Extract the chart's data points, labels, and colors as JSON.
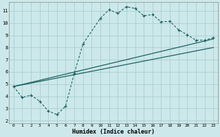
{
  "xlabel": "Humidex (Indice chaleur)",
  "bg_color": "#cce8ea",
  "grid_color": "#aacdd0",
  "line_color": "#1a6060",
  "xlim": [
    -0.5,
    23.5
  ],
  "ylim": [
    1.8,
    11.7
  ],
  "xticks": [
    0,
    1,
    2,
    3,
    4,
    5,
    6,
    7,
    8,
    9,
    10,
    11,
    12,
    13,
    14,
    15,
    16,
    17,
    18,
    19,
    20,
    21,
    22,
    23
  ],
  "yticks": [
    2,
    3,
    4,
    5,
    6,
    7,
    8,
    9,
    10,
    11
  ],
  "curve_x": [
    0,
    1,
    2,
    3,
    4,
    5,
    6,
    7,
    8,
    10,
    11,
    12,
    13,
    14,
    15,
    16,
    17,
    18,
    19,
    20,
    21,
    22,
    23
  ],
  "curve_y": [
    4.8,
    3.9,
    4.1,
    3.6,
    2.8,
    2.5,
    3.2,
    5.9,
    8.3,
    10.4,
    11.1,
    10.8,
    11.35,
    11.2,
    10.6,
    10.7,
    10.1,
    10.15,
    9.45,
    9.05,
    8.6,
    8.6,
    8.8
  ],
  "line1_x": [
    0,
    23
  ],
  "line1_y": [
    4.8,
    8.7
  ],
  "line2_x": [
    0,
    23
  ],
  "line2_y": [
    4.8,
    8.0
  ]
}
